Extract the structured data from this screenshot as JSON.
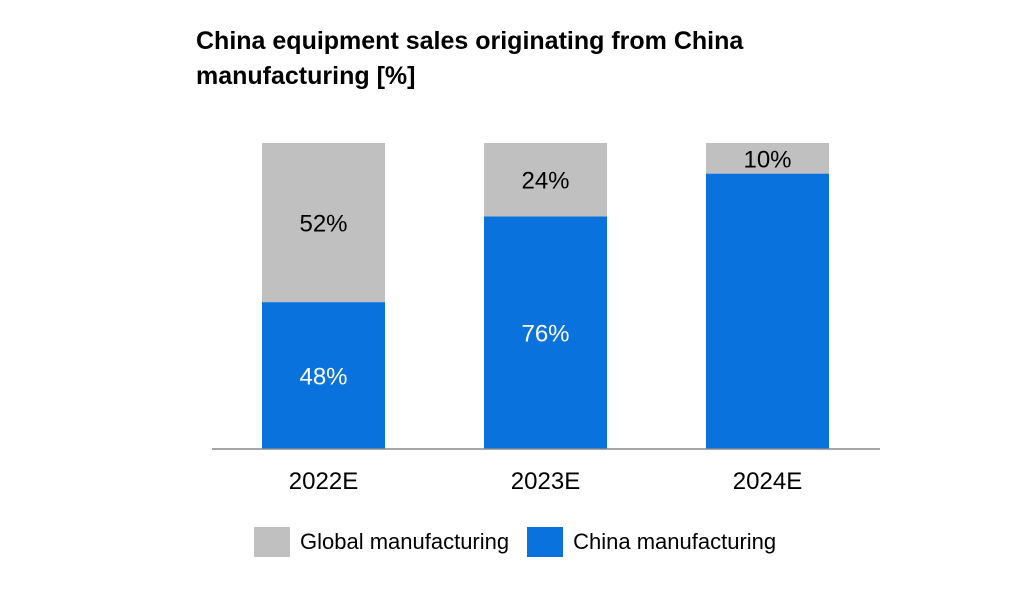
{
  "chart_data": {
    "type": "bar",
    "stacked": true,
    "percent": true,
    "title": "China equipment sales originating from China manufacturing [%]",
    "categories": [
      "2022E",
      "2023E",
      "2024E"
    ],
    "series": [
      {
        "name": "China manufacturing",
        "values": [
          48,
          76,
          90
        ],
        "labels": [
          "48%",
          "76%",
          ""
        ],
        "color": "#0A72DC",
        "label_color": "#ffffff"
      },
      {
        "name": "Global manufacturing",
        "values": [
          52,
          24,
          10
        ],
        "labels": [
          "52%",
          "24%",
          "10%"
        ],
        "color": "#C0C0C0",
        "label_color": "#000000"
      }
    ],
    "legend": [
      "Global manufacturing",
      "China manufacturing"
    ],
    "legend_position": "bottom",
    "ylim": [
      0,
      100
    ],
    "grid": false,
    "xlabel": "",
    "ylabel": ""
  }
}
